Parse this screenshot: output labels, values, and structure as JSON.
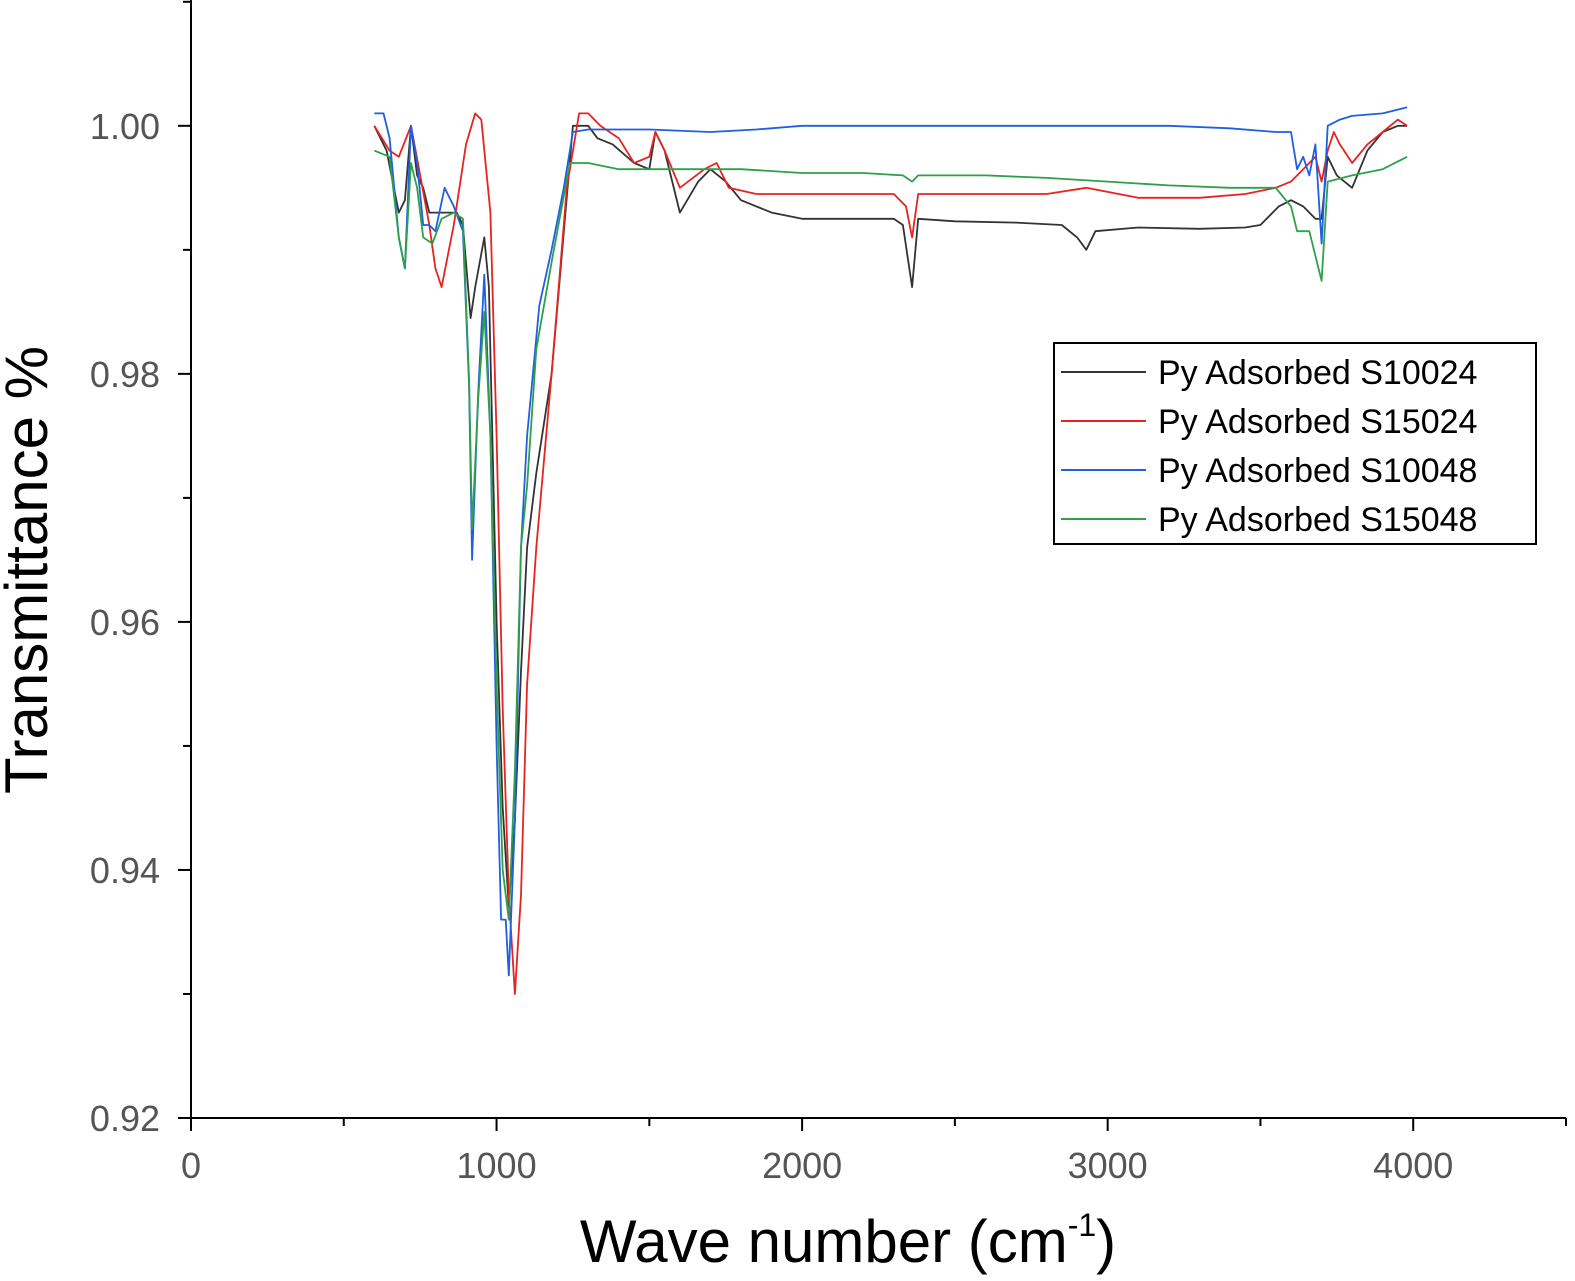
{
  "chart_data": {
    "type": "line",
    "xlabel": "Wave number (cm",
    "xlabel_sup": "-1",
    "xlabel_end": ")",
    "ylabel": "Transmittance %",
    "xlim": [
      0,
      4500
    ],
    "ylim": [
      0.92,
      1.01
    ],
    "xticks": [
      0,
      1000,
      2000,
      3000,
      4000
    ],
    "xtick_labels": [
      "0",
      "1000",
      "2000",
      "3000",
      "4000"
    ],
    "xticks_minor": [
      500,
      1500,
      2500,
      3500,
      4500
    ],
    "yticks": [
      0.92,
      0.94,
      0.96,
      0.98,
      1.0
    ],
    "ytick_labels": [
      "0.92",
      "0.94",
      "0.96",
      "0.98",
      "1.00"
    ],
    "yticks_minor": [
      0.93,
      0.95,
      0.97,
      0.99,
      1.01
    ],
    "grid": false,
    "legend_position": "right",
    "series": [
      {
        "name": "Py Adsorbed S10024",
        "color": "#333333",
        "points": [
          [
            600,
            1.0
          ],
          [
            640,
            0.998
          ],
          [
            680,
            0.993
          ],
          [
            700,
            0.994
          ],
          [
            720,
            1.0
          ],
          [
            740,
            0.996
          ],
          [
            760,
            0.995
          ],
          [
            780,
            0.993
          ],
          [
            800,
            0.993
          ],
          [
            830,
            0.993
          ],
          [
            870,
            0.993
          ],
          [
            890,
            0.992
          ],
          [
            915,
            0.9845
          ],
          [
            930,
            0.987
          ],
          [
            960,
            0.991
          ],
          [
            975,
            0.987
          ],
          [
            1000,
            0.96
          ],
          [
            1020,
            0.945
          ],
          [
            1040,
            0.937
          ],
          [
            1060,
            0.944
          ],
          [
            1080,
            0.956
          ],
          [
            1100,
            0.966
          ],
          [
            1130,
            0.972
          ],
          [
            1180,
            0.98
          ],
          [
            1250,
            1.0
          ],
          [
            1300,
            1.0
          ],
          [
            1330,
            0.999
          ],
          [
            1380,
            0.9985
          ],
          [
            1450,
            0.997
          ],
          [
            1500,
            0.9965
          ],
          [
            1520,
            0.9995
          ],
          [
            1550,
            0.998
          ],
          [
            1600,
            0.993
          ],
          [
            1660,
            0.9955
          ],
          [
            1700,
            0.9965
          ],
          [
            1750,
            0.9955
          ],
          [
            1800,
            0.994
          ],
          [
            1900,
            0.993
          ],
          [
            2000,
            0.9925
          ],
          [
            2100,
            0.9925
          ],
          [
            2200,
            0.9925
          ],
          [
            2300,
            0.9925
          ],
          [
            2330,
            0.992
          ],
          [
            2360,
            0.987
          ],
          [
            2380,
            0.9925
          ],
          [
            2500,
            0.9923
          ],
          [
            2700,
            0.9922
          ],
          [
            2850,
            0.992
          ],
          [
            2900,
            0.991
          ],
          [
            2930,
            0.99
          ],
          [
            2960,
            0.9915
          ],
          [
            3100,
            0.9918
          ],
          [
            3300,
            0.9917
          ],
          [
            3450,
            0.9918
          ],
          [
            3500,
            0.992
          ],
          [
            3560,
            0.9935
          ],
          [
            3600,
            0.994
          ],
          [
            3640,
            0.9935
          ],
          [
            3680,
            0.9925
          ],
          [
            3700,
            0.9925
          ],
          [
            3720,
            0.9975
          ],
          [
            3750,
            0.996
          ],
          [
            3800,
            0.995
          ],
          [
            3850,
            0.998
          ],
          [
            3900,
            0.9995
          ],
          [
            3950,
            1.0
          ],
          [
            3980,
            1.0
          ]
        ]
      },
      {
        "name": "Py Adsorbed S15024",
        "color": "#e8231f",
        "points": [
          [
            600,
            1.0
          ],
          [
            650,
            0.998
          ],
          [
            680,
            0.9975
          ],
          [
            720,
            1.0
          ],
          [
            750,
            0.996
          ],
          [
            780,
            0.992
          ],
          [
            800,
            0.9885
          ],
          [
            820,
            0.987
          ],
          [
            860,
            0.992
          ],
          [
            900,
            0.9985
          ],
          [
            930,
            1.001
          ],
          [
            950,
            1.0005
          ],
          [
            980,
            0.993
          ],
          [
            1000,
            0.975
          ],
          [
            1020,
            0.953
          ],
          [
            1040,
            0.938
          ],
          [
            1060,
            0.93
          ],
          [
            1080,
            0.938
          ],
          [
            1100,
            0.955
          ],
          [
            1130,
            0.966
          ],
          [
            1180,
            0.98
          ],
          [
            1230,
            0.995
          ],
          [
            1270,
            1.001
          ],
          [
            1300,
            1.001
          ],
          [
            1340,
            1.0
          ],
          [
            1400,
            0.999
          ],
          [
            1450,
            0.997
          ],
          [
            1500,
            0.9975
          ],
          [
            1520,
            0.9995
          ],
          [
            1550,
            0.998
          ],
          [
            1600,
            0.995
          ],
          [
            1680,
            0.9965
          ],
          [
            1720,
            0.997
          ],
          [
            1760,
            0.995
          ],
          [
            1850,
            0.9945
          ],
          [
            2000,
            0.9945
          ],
          [
            2150,
            0.9945
          ],
          [
            2300,
            0.9945
          ],
          [
            2340,
            0.9935
          ],
          [
            2360,
            0.991
          ],
          [
            2380,
            0.9945
          ],
          [
            2600,
            0.9945
          ],
          [
            2800,
            0.9945
          ],
          [
            2930,
            0.995
          ],
          [
            3100,
            0.9942
          ],
          [
            3300,
            0.9942
          ],
          [
            3450,
            0.9945
          ],
          [
            3550,
            0.995
          ],
          [
            3600,
            0.9955
          ],
          [
            3640,
            0.9965
          ],
          [
            3680,
            0.9975
          ],
          [
            3700,
            0.9955
          ],
          [
            3720,
            0.998
          ],
          [
            3740,
            0.9995
          ],
          [
            3760,
            0.9985
          ],
          [
            3800,
            0.997
          ],
          [
            3850,
            0.9985
          ],
          [
            3900,
            0.9995
          ],
          [
            3950,
            1.0005
          ],
          [
            3980,
            1.0
          ]
        ]
      },
      {
        "name": "Py Adsorbed S10048",
        "color": "#1f5fe0",
        "points": [
          [
            600,
            1.001
          ],
          [
            630,
            1.001
          ],
          [
            650,
            0.999
          ],
          [
            680,
            0.991
          ],
          [
            700,
            0.9885
          ],
          [
            720,
            1.0
          ],
          [
            740,
            0.997
          ],
          [
            760,
            0.992
          ],
          [
            780,
            0.992
          ],
          [
            800,
            0.9915
          ],
          [
            830,
            0.995
          ],
          [
            860,
            0.9935
          ],
          [
            890,
            0.9915
          ],
          [
            910,
            0.979
          ],
          [
            920,
            0.965
          ],
          [
            940,
            0.9785
          ],
          [
            960,
            0.988
          ],
          [
            980,
            0.975
          ],
          [
            1000,
            0.95
          ],
          [
            1015,
            0.936
          ],
          [
            1030,
            0.936
          ],
          [
            1040,
            0.9315
          ],
          [
            1060,
            0.944
          ],
          [
            1080,
            0.966
          ],
          [
            1100,
            0.975
          ],
          [
            1140,
            0.9855
          ],
          [
            1180,
            0.99
          ],
          [
            1220,
            0.995
          ],
          [
            1250,
            0.9995
          ],
          [
            1300,
            0.9997
          ],
          [
            1500,
            0.9997
          ],
          [
            1700,
            0.9995
          ],
          [
            1850,
            0.9997
          ],
          [
            2000,
            1.0
          ],
          [
            2300,
            1.0
          ],
          [
            2500,
            1.0
          ],
          [
            2800,
            1.0
          ],
          [
            3000,
            1.0
          ],
          [
            3200,
            1.0
          ],
          [
            3400,
            0.9998
          ],
          [
            3550,
            0.9995
          ],
          [
            3600,
            0.9995
          ],
          [
            3620,
            0.9965
          ],
          [
            3640,
            0.9975
          ],
          [
            3660,
            0.996
          ],
          [
            3680,
            0.9985
          ],
          [
            3700,
            0.9905
          ],
          [
            3720,
            1.0
          ],
          [
            3760,
            1.0005
          ],
          [
            3800,
            1.0008
          ],
          [
            3900,
            1.001
          ],
          [
            3980,
            1.0015
          ]
        ]
      },
      {
        "name": "Py Adsorbed S15048",
        "color": "#2ea04a",
        "points": [
          [
            600,
            0.998
          ],
          [
            650,
            0.9975
          ],
          [
            680,
            0.991
          ],
          [
            700,
            0.9885
          ],
          [
            720,
            0.997
          ],
          [
            740,
            0.995
          ],
          [
            760,
            0.991
          ],
          [
            790,
            0.9905
          ],
          [
            820,
            0.9925
          ],
          [
            860,
            0.993
          ],
          [
            890,
            0.9925
          ],
          [
            910,
            0.9795
          ],
          [
            920,
            0.9675
          ],
          [
            940,
            0.978
          ],
          [
            960,
            0.985
          ],
          [
            980,
            0.975
          ],
          [
            1000,
            0.955
          ],
          [
            1020,
            0.94
          ],
          [
            1040,
            0.936
          ],
          [
            1060,
            0.948
          ],
          [
            1080,
            0.966
          ],
          [
            1100,
            0.971
          ],
          [
            1130,
            0.982
          ],
          [
            1180,
            0.989
          ],
          [
            1240,
            0.997
          ],
          [
            1300,
            0.997
          ],
          [
            1400,
            0.9965
          ],
          [
            1500,
            0.9965
          ],
          [
            1600,
            0.9965
          ],
          [
            1700,
            0.9965
          ],
          [
            1800,
            0.9965
          ],
          [
            2000,
            0.9962
          ],
          [
            2200,
            0.9962
          ],
          [
            2330,
            0.996
          ],
          [
            2360,
            0.9955
          ],
          [
            2380,
            0.996
          ],
          [
            2600,
            0.996
          ],
          [
            2800,
            0.9958
          ],
          [
            3000,
            0.9955
          ],
          [
            3200,
            0.9952
          ],
          [
            3400,
            0.995
          ],
          [
            3550,
            0.995
          ],
          [
            3600,
            0.9935
          ],
          [
            3620,
            0.9915
          ],
          [
            3660,
            0.9915
          ],
          [
            3690,
            0.9885
          ],
          [
            3700,
            0.9875
          ],
          [
            3720,
            0.9955
          ],
          [
            3800,
            0.996
          ],
          [
            3900,
            0.9965
          ],
          [
            3980,
            0.9975
          ]
        ]
      }
    ]
  }
}
